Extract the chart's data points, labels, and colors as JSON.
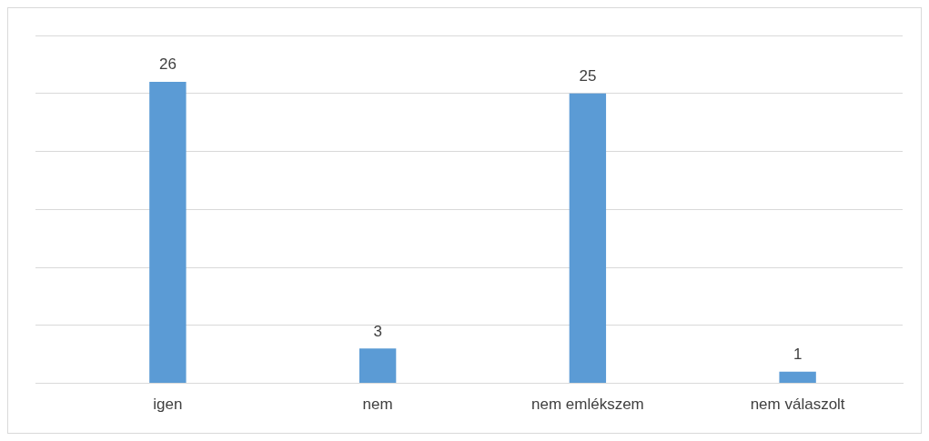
{
  "chart_data": {
    "type": "bar",
    "categories": [
      "igen",
      "nem",
      "nem emlékszem",
      "nem válaszolt"
    ],
    "values": [
      26,
      3,
      25,
      1
    ],
    "color": "#5b9bd5",
    "ylim": [
      0,
      30
    ],
    "yticks": [
      {
        "value": 0,
        "label": null
      },
      {
        "value": 5,
        "label": null
      },
      {
        "value": 10,
        "label": null
      },
      {
        "value": 15,
        "label": null
      },
      {
        "value": 20,
        "label": null
      },
      {
        "value": 25,
        "label": null
      },
      {
        "value": 30,
        "label": null
      }
    ],
    "grid": "y",
    "tick_labels": "x",
    "data_labels": true,
    "legend": false
  }
}
